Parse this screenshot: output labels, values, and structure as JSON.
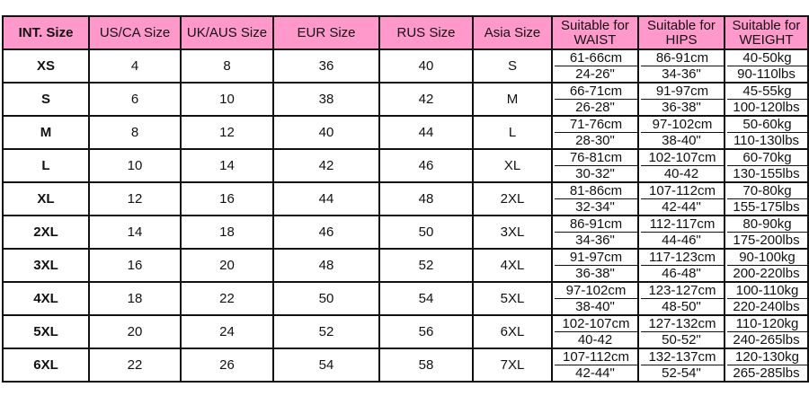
{
  "header": {
    "int": "INT. Size",
    "us": "US/CA Size",
    "uk": "UK/AUS Size",
    "eur": "EUR Size",
    "rus": "RUS Size",
    "asia": "Asia Size",
    "waist": [
      "Suitable for",
      "WAIST"
    ],
    "hips": [
      "Suitable for",
      "HIPS"
    ],
    "weight": [
      "Suitable for",
      "WEIGHT"
    ]
  },
  "colors": {
    "header_bg": "#ff99cc",
    "border": "#111111"
  },
  "rows": [
    {
      "int": "XS",
      "us": "4",
      "uk": "8",
      "eur": "36",
      "rus": "40",
      "asia": "S",
      "waist": [
        "61-66cm",
        "24-26\""
      ],
      "hips": [
        "86-91cm",
        "34-36\""
      ],
      "weight": [
        "40-50kg",
        "90-110lbs"
      ]
    },
    {
      "int": "S",
      "us": "6",
      "uk": "10",
      "eur": "38",
      "rus": "42",
      "asia": "M",
      "waist": [
        "66-71cm",
        "26-28\""
      ],
      "hips": [
        "91-97cm",
        "36-38\""
      ],
      "weight": [
        "45-55kg",
        "100-120lbs"
      ]
    },
    {
      "int": "M",
      "us": "8",
      "uk": "12",
      "eur": "40",
      "rus": "44",
      "asia": "L",
      "waist": [
        "71-76cm",
        "28-30\""
      ],
      "hips": [
        "97-102cm",
        "38-40\""
      ],
      "weight": [
        "50-60kg",
        "110-130lbs"
      ]
    },
    {
      "int": "L",
      "us": "10",
      "uk": "14",
      "eur": "42",
      "rus": "46",
      "asia": "XL",
      "waist": [
        "76-81cm",
        "30-32\""
      ],
      "hips": [
        "102-107cm",
        "40-42"
      ],
      "weight": [
        "60-70kg",
        "130-155lbs"
      ]
    },
    {
      "int": "XL",
      "us": "12",
      "uk": "16",
      "eur": "44",
      "rus": "48",
      "asia": "2XL",
      "waist": [
        "81-86cm",
        "32-34\""
      ],
      "hips": [
        "107-112cm",
        "42-44\""
      ],
      "weight": [
        "70-80kg",
        "155-175lbs"
      ]
    },
    {
      "int": "2XL",
      "us": "14",
      "uk": "18",
      "eur": "46",
      "rus": "50",
      "asia": "3XL",
      "waist": [
        "86-91cm",
        "34-36\""
      ],
      "hips": [
        "112-117cm",
        "44-46\""
      ],
      "weight": [
        "80-90kg",
        "175-200lbs"
      ]
    },
    {
      "int": "3XL",
      "us": "16",
      "uk": "20",
      "eur": "48",
      "rus": "52",
      "asia": "4XL",
      "waist": [
        "91-97cm",
        "36-38\""
      ],
      "hips": [
        "117-123cm",
        "46-48\""
      ],
      "weight": [
        "90-100kg",
        "200-220lbs"
      ]
    },
    {
      "int": "4XL",
      "us": "18",
      "uk": "22",
      "eur": "50",
      "rus": "54",
      "asia": "5XL",
      "waist": [
        "97-102cm",
        "38-40\""
      ],
      "hips": [
        "123-127cm",
        "48-50\""
      ],
      "weight": [
        "100-110kg",
        "220-240lbs"
      ]
    },
    {
      "int": "5XL",
      "us": "20",
      "uk": "24",
      "eur": "52",
      "rus": "56",
      "asia": "6XL",
      "waist": [
        "102-107cm",
        "40-42"
      ],
      "hips": [
        "127-132cm",
        "50-52\""
      ],
      "weight": [
        "110-120kg",
        "240-265lbs"
      ]
    },
    {
      "int": "6XL",
      "us": "22",
      "uk": "26",
      "eur": "54",
      "rus": "58",
      "asia": "7XL",
      "waist": [
        "107-112cm",
        "42-44\""
      ],
      "hips": [
        "132-137cm",
        "52-54\""
      ],
      "weight": [
        "120-130kg",
        "265-285lbs"
      ]
    }
  ]
}
